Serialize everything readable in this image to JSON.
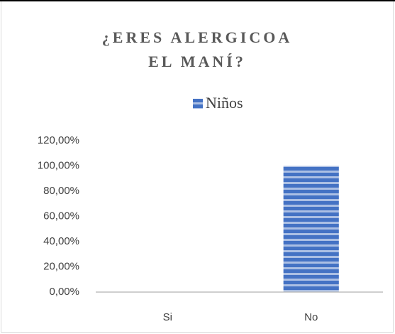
{
  "chart_data": {
    "type": "bar",
    "title": "¿ERES ALERGICOA EL MANÍ?",
    "categories": [
      "Si",
      "No"
    ],
    "series": [
      {
        "name": "Niños",
        "color": "#4472c4",
        "values": [
          0,
          100
        ]
      }
    ],
    "ylim": [
      0,
      120
    ],
    "yticks": [
      {
        "value": 0,
        "label": "0,00%"
      },
      {
        "value": 20,
        "label": "20,00%"
      },
      {
        "value": 40,
        "label": "40,00%"
      },
      {
        "value": 60,
        "label": "60,00%"
      },
      {
        "value": 80,
        "label": "80,00%"
      },
      {
        "value": 100,
        "label": "100,00%"
      },
      {
        "value": 120,
        "label": "120,00%"
      }
    ],
    "legend": "top",
    "grid": false
  }
}
